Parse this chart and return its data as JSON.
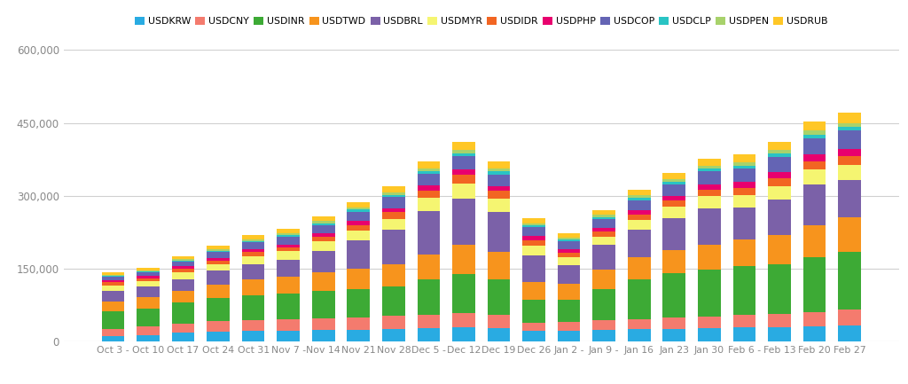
{
  "categories": [
    "Oct 3 -",
    "Oct 10",
    "Oct 17",
    "Oct 24",
    "Oct 31",
    "Nov 7 -",
    "Nov 14",
    "Nov 21",
    "Nov 28",
    "Dec 5 -",
    "Dec 12",
    "Dec 19",
    "Dec 26",
    "Jan 2 -",
    "Jan 9 -",
    "Jan 16",
    "Jan 23",
    "Jan 30",
    "Feb 6 -",
    "Feb 13",
    "Feb 20",
    "Feb 27"
  ],
  "series": {
    "USDKRW": [
      12000,
      14000,
      18000,
      20000,
      22000,
      23000,
      24000,
      25000,
      27000,
      28000,
      29000,
      28000,
      23000,
      23000,
      25000,
      26000,
      27000,
      28000,
      29000,
      30000,
      31000,
      34000
    ],
    "USDCNY": [
      15000,
      17000,
      20000,
      22000,
      22000,
      23000,
      24000,
      25000,
      27000,
      28000,
      30000,
      27000,
      16000,
      17000,
      19000,
      21000,
      22000,
      24000,
      26000,
      28000,
      30000,
      32000
    ],
    "USDINR": [
      35000,
      38000,
      42000,
      48000,
      52000,
      54000,
      56000,
      58000,
      60000,
      72000,
      80000,
      74000,
      48000,
      46000,
      65000,
      82000,
      92000,
      96000,
      100000,
      102000,
      112000,
      118000
    ],
    "USDTWD": [
      20000,
      22000,
      25000,
      28000,
      32000,
      34000,
      38000,
      42000,
      46000,
      52000,
      60000,
      56000,
      36000,
      34000,
      40000,
      44000,
      48000,
      52000,
      56000,
      60000,
      66000,
      72000
    ],
    "USDBRL": [
      22000,
      22000,
      24000,
      28000,
      32000,
      35000,
      45000,
      58000,
      70000,
      88000,
      95000,
      82000,
      55000,
      38000,
      50000,
      58000,
      66000,
      75000,
      65000,
      73000,
      85000,
      76000
    ],
    "USDMYR": [
      12000,
      12000,
      14000,
      14000,
      16000,
      17000,
      19000,
      21000,
      23000,
      28000,
      32000,
      28000,
      20000,
      16000,
      17000,
      19000,
      22000,
      24000,
      25000,
      27000,
      30000,
      32000
    ],
    "USDIDR": [
      6000,
      6000,
      7000,
      7000,
      8000,
      8000,
      10000,
      11000,
      13000,
      15000,
      17000,
      15000,
      11000,
      9000,
      10000,
      12000,
      13000,
      14000,
      15000,
      16000,
      17000,
      18000
    ],
    "USDPHP": [
      4000,
      4000,
      5000,
      5000,
      6000,
      6000,
      7000,
      8000,
      9000,
      10000,
      12000,
      10000,
      8000,
      7000,
      8000,
      9000,
      10000,
      11000,
      12000,
      13000,
      14000,
      15000
    ],
    "USDCOP": [
      8000,
      8000,
      10000,
      12000,
      14000,
      16000,
      17000,
      19000,
      22000,
      24000,
      26000,
      24000,
      18000,
      16000,
      18000,
      20000,
      23000,
      26000,
      28000,
      31000,
      34000,
      37000
    ],
    "USDCLP": [
      2000,
      2000,
      2500,
      3000,
      3500,
      4000,
      4000,
      4500,
      5000,
      5500,
      6500,
      6000,
      4000,
      3500,
      4000,
      4500,
      5000,
      5500,
      6000,
      6500,
      7000,
      7500
    ],
    "USDPEN": [
      2000,
      2000,
      2500,
      3000,
      3500,
      4000,
      4500,
      5000,
      5500,
      6000,
      7000,
      6500,
      5000,
      4500,
      5000,
      5500,
      6000,
      6500,
      7000,
      7500,
      8000,
      8500
    ],
    "USDRUB": [
      4000,
      5000,
      6000,
      7000,
      8000,
      9000,
      10000,
      11000,
      12000,
      14000,
      16000,
      14000,
      10000,
      9000,
      10000,
      12000,
      14000,
      15000,
      16000,
      17000,
      19000,
      21000
    ]
  },
  "colors": {
    "USDKRW": "#29ABE2",
    "USDCNY": "#F47B6E",
    "USDINR": "#3DAA35",
    "USDTWD": "#F7941D",
    "USDBRL": "#7B61A8",
    "USDMYR": "#F5F571",
    "USDIDR": "#F26522",
    "USDPHP": "#E8006E",
    "USDCOP": "#6464B4",
    "USDCLP": "#29C4C4",
    "USDPEN": "#A8D26B",
    "USDRUB": "#FFC726"
  },
  "series_order": [
    "USDKRW",
    "USDCNY",
    "USDINR",
    "USDTWD",
    "USDBRL",
    "USDMYR",
    "USDIDR",
    "USDPHP",
    "USDCOP",
    "USDCLP",
    "USDPEN",
    "USDRUB"
  ],
  "ylim": [
    0,
    600000
  ],
  "yticks": [
    0,
    150000,
    300000,
    450000,
    600000
  ],
  "ytick_labels": [
    "0",
    "150,000",
    "300,000",
    "450,000",
    "600,000"
  ],
  "background_color": "#ffffff",
  "grid_color": "#d0d0d0",
  "bar_width": 0.65
}
